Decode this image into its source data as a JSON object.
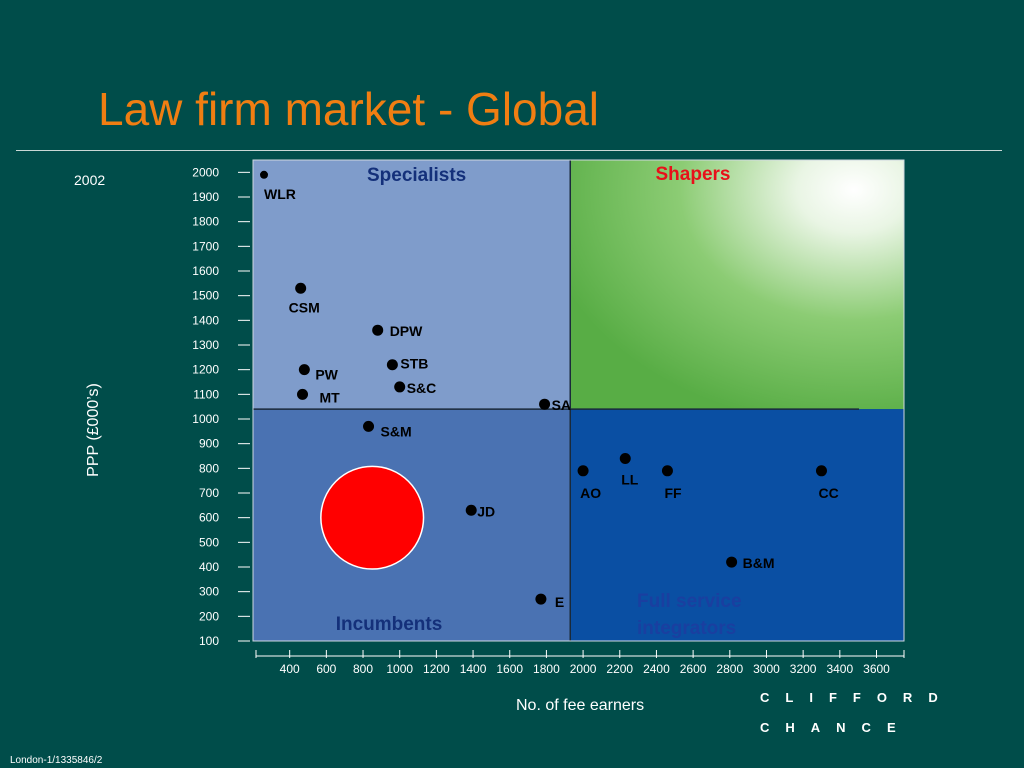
{
  "slide": {
    "title": "Law firm market - Global",
    "year": "2002",
    "footer": "London-1/1335846/2",
    "logo_line1": "CLIFFORD",
    "logo_line2": "CHANCE"
  },
  "colors": {
    "background": "#004d4a",
    "title": "#f07e12",
    "specialists": "#7f9ccb",
    "incumbents": "#4a72b2",
    "full_service": "#0a4fa3",
    "shapers_green": "#5fb34a",
    "circle": "#ff0000",
    "quadrant_label_blue": "#14307a",
    "shapers_label": "#e8101a"
  },
  "chart_data": {
    "type": "scatter",
    "xlabel": "No. of fee earners",
    "ylabel": "PPP (£000’s)",
    "x_ticks": [
      400,
      600,
      800,
      1000,
      1200,
      1400,
      1600,
      1800,
      2000,
      2200,
      2400,
      2600,
      2800,
      3000,
      3200,
      3400,
      3600
    ],
    "y_ticks": [
      100,
      200,
      300,
      400,
      500,
      600,
      700,
      800,
      900,
      1000,
      1100,
      1200,
      1300,
      1400,
      1500,
      1600,
      1700,
      1800,
      1900,
      2000
    ],
    "xlim": [
      200,
      3750
    ],
    "ylim": [
      100,
      2050
    ],
    "quadrant_split": {
      "x": 1930,
      "y": 1040
    },
    "quadrants": {
      "top_left": "Specialists",
      "top_right": "Shapers",
      "bottom_left": "Incumbents",
      "bottom_right_line1": "Full service",
      "bottom_right_line2": "integrators"
    },
    "points": [
      {
        "label": "WLR",
        "x": 260,
        "y": 1990
      },
      {
        "label": "CSM",
        "x": 460,
        "y": 1530
      },
      {
        "label": "DPW",
        "x": 880,
        "y": 1360
      },
      {
        "label": "STB",
        "x": 960,
        "y": 1220
      },
      {
        "label": "PW",
        "x": 480,
        "y": 1200
      },
      {
        "label": "S&C",
        "x": 1000,
        "y": 1130
      },
      {
        "label": "MT",
        "x": 470,
        "y": 1100
      },
      {
        "label": "SA",
        "x": 1790,
        "y": 1060
      },
      {
        "label": "S&M",
        "x": 830,
        "y": 970
      },
      {
        "label": "LL",
        "x": 2230,
        "y": 840
      },
      {
        "label": "AO",
        "x": 2000,
        "y": 790
      },
      {
        "label": "FF",
        "x": 2460,
        "y": 790
      },
      {
        "label": "CC",
        "x": 3300,
        "y": 790
      },
      {
        "label": "JD",
        "x": 1390,
        "y": 630
      },
      {
        "label": "B&M",
        "x": 2810,
        "y": 420
      },
      {
        "label": "E",
        "x": 1770,
        "y": 270
      }
    ],
    "highlight_circle": {
      "cx": 850,
      "cy": 600,
      "r_x_units": 560
    }
  }
}
